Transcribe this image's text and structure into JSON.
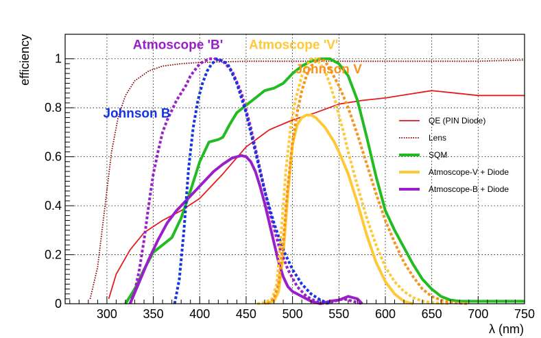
{
  "chart_data": {
    "type": "line",
    "title": "",
    "xlabel": "λ (nm)",
    "ylabel": "efficiency",
    "xlim": [
      255,
      750
    ],
    "ylim": [
      0,
      1.1
    ],
    "grid": true,
    "x_ticks": [
      300,
      350,
      400,
      450,
      500,
      550,
      600,
      650,
      700,
      750
    ],
    "y_ticks": [
      0,
      0.2,
      0.4,
      0.6,
      0.8,
      1
    ],
    "x_tick_labels": [
      "300",
      "350",
      "400",
      "450",
      "500",
      "550",
      "600",
      "650",
      "700",
      "750"
    ],
    "y_tick_labels": [
      "0",
      "0.2",
      "0.4",
      "0.6",
      "0.8",
      "1"
    ],
    "legend_position": "right",
    "series": [
      {
        "name": "QE (PIN Diode)",
        "in_legend": true,
        "color": "#e41a1c",
        "style": "solid",
        "weight": "thin",
        "x": [
          302,
          310,
          325,
          340,
          360,
          380,
          400,
          425,
          450,
          475,
          500,
          525,
          550,
          575,
          600,
          625,
          650,
          675,
          700,
          725,
          750
        ],
        "y": [
          0.02,
          0.12,
          0.22,
          0.29,
          0.34,
          0.38,
          0.43,
          0.53,
          0.64,
          0.71,
          0.75,
          0.78,
          0.815,
          0.83,
          0.84,
          0.855,
          0.87,
          0.86,
          0.85,
          0.85,
          0.85
        ]
      },
      {
        "name": "Lens",
        "in_legend": true,
        "color": "#8b0000",
        "style": "dotted",
        "weight": "thin",
        "x": [
          282,
          290,
          298,
          305,
          312,
          320,
          330,
          345,
          360,
          380,
          400,
          450,
          500,
          550,
          600,
          650,
          700,
          750
        ],
        "y": [
          0.02,
          0.15,
          0.4,
          0.62,
          0.76,
          0.85,
          0.91,
          0.95,
          0.97,
          0.98,
          0.985,
          0.99,
          0.99,
          0.99,
          0.99,
          0.99,
          0.99,
          0.995
        ]
      },
      {
        "name": "SQM",
        "in_legend": true,
        "color": "#22bb22",
        "style": "solid",
        "weight": "thick",
        "x": [
          320,
          330,
          340,
          350,
          360,
          370,
          380,
          390,
          400,
          410,
          420,
          425,
          432,
          440,
          450,
          460,
          470,
          480,
          490,
          500,
          510,
          520,
          530,
          540,
          550,
          560,
          570,
          580,
          590,
          600,
          610,
          620,
          630,
          640,
          650,
          660,
          670,
          680,
          690,
          700,
          710,
          720,
          730,
          740,
          750
        ],
        "y": [
          0.0,
          0.06,
          0.14,
          0.21,
          0.24,
          0.27,
          0.35,
          0.46,
          0.58,
          0.66,
          0.67,
          0.68,
          0.73,
          0.78,
          0.81,
          0.84,
          0.87,
          0.88,
          0.9,
          0.94,
          0.97,
          0.99,
          1.0,
          1.0,
          0.98,
          0.93,
          0.83,
          0.68,
          0.52,
          0.38,
          0.3,
          0.23,
          0.16,
          0.1,
          0.06,
          0.03,
          0.015,
          0.01,
          0.01,
          0.01,
          0.01,
          0.01,
          0.01,
          0.01,
          0.01
        ]
      },
      {
        "name": "Atmoscope-V + Diode",
        "in_legend": true,
        "color": "#ffc837",
        "style": "solid",
        "weight": "thick",
        "x": [
          470,
          480,
          485,
          490,
          495,
          500,
          505,
          510,
          515,
          520,
          525,
          530,
          535,
          540,
          545,
          550,
          560,
          570,
          580,
          590,
          600,
          610,
          620,
          630
        ],
        "y": [
          0.0,
          0.01,
          0.05,
          0.2,
          0.45,
          0.65,
          0.73,
          0.76,
          0.77,
          0.77,
          0.76,
          0.74,
          0.72,
          0.69,
          0.66,
          0.62,
          0.53,
          0.41,
          0.28,
          0.17,
          0.09,
          0.04,
          0.01,
          0.0
        ]
      },
      {
        "name": "Atmoscope-B + Diode",
        "in_legend": true,
        "color": "#9a1fc8",
        "style": "solid",
        "weight": "thick",
        "x": [
          325,
          335,
          345,
          355,
          365,
          375,
          385,
          395,
          405,
          415,
          425,
          435,
          445,
          450,
          455,
          460,
          465,
          470,
          475,
          480,
          485,
          490,
          495,
          500,
          505,
          510,
          520,
          530,
          540,
          550,
          560,
          570,
          575
        ],
        "y": [
          0.0,
          0.09,
          0.18,
          0.26,
          0.33,
          0.38,
          0.42,
          0.46,
          0.5,
          0.54,
          0.57,
          0.595,
          0.605,
          0.6,
          0.58,
          0.54,
          0.48,
          0.41,
          0.33,
          0.25,
          0.17,
          0.11,
          0.07,
          0.05,
          0.04,
          0.03,
          0.01,
          0.0,
          0.01,
          0.015,
          0.03,
          0.02,
          0.0
        ]
      },
      {
        "name": "Atmoscope 'B'",
        "in_legend": false,
        "color": "#9a1fc8",
        "style": "dotted",
        "weight": "thick",
        "x": [
          325,
          330,
          335,
          340,
          345,
          350,
          355,
          360,
          365,
          370,
          375,
          380,
          385,
          390,
          400,
          410,
          418,
          425,
          435,
          445,
          455,
          465,
          475,
          485,
          495,
          505,
          515,
          525,
          535,
          545,
          555,
          565,
          575
        ],
        "y": [
          0.0,
          0.05,
          0.14,
          0.26,
          0.4,
          0.53,
          0.62,
          0.7,
          0.75,
          0.79,
          0.83,
          0.86,
          0.89,
          0.93,
          0.98,
          1.0,
          1.0,
          0.99,
          0.95,
          0.86,
          0.72,
          0.55,
          0.38,
          0.24,
          0.14,
          0.07,
          0.03,
          0.01,
          0.0,
          0.01,
          0.02,
          0.01,
          0.0
        ]
      },
      {
        "name": "Johnson B",
        "in_legend": false,
        "color": "#1535e0",
        "style": "dotted",
        "weight": "thick",
        "x": [
          373,
          378,
          383,
          388,
          393,
          398,
          403,
          408,
          413,
          420,
          430,
          440,
          450,
          460,
          470,
          480,
          490,
          500,
          510,
          520,
          530,
          540
        ],
        "y": [
          0.0,
          0.1,
          0.3,
          0.55,
          0.72,
          0.83,
          0.9,
          0.95,
          0.98,
          1.0,
          0.98,
          0.9,
          0.78,
          0.62,
          0.46,
          0.33,
          0.22,
          0.14,
          0.08,
          0.04,
          0.015,
          0.0
        ]
      },
      {
        "name": "Atmoscope 'V'",
        "in_legend": false,
        "color": "#ffc837",
        "style": "dotted",
        "weight": "thick",
        "x": [
          462,
          470,
          478,
          483,
          488,
          493,
          498,
          503,
          510,
          515,
          520,
          525,
          530,
          535,
          540,
          545,
          550,
          555,
          560,
          570,
          580,
          590,
          600,
          610,
          620,
          630,
          640,
          650,
          660,
          670
        ],
        "y": [
          0.0,
          0.005,
          0.02,
          0.08,
          0.3,
          0.55,
          0.72,
          0.83,
          0.93,
          0.97,
          1.0,
          1.0,
          0.98,
          0.95,
          0.9,
          0.84,
          0.77,
          0.7,
          0.62,
          0.48,
          0.35,
          0.24,
          0.15,
          0.09,
          0.05,
          0.025,
          0.01,
          0.005,
          0.002,
          0.0
        ]
      },
      {
        "name": "Johnson V",
        "in_legend": false,
        "color": "#f7941d",
        "style": "dotted",
        "weight": "thick",
        "x": [
          473,
          480,
          485,
          490,
          495,
          500,
          505,
          510,
          515,
          520,
          525,
          530,
          535,
          540,
          550,
          560,
          570,
          580,
          590,
          600,
          610,
          620,
          630,
          640,
          650,
          660,
          670,
          680,
          690
        ],
        "y": [
          0.0,
          0.02,
          0.08,
          0.25,
          0.48,
          0.66,
          0.78,
          0.87,
          0.93,
          0.97,
          0.99,
          1.0,
          0.99,
          0.96,
          0.89,
          0.8,
          0.69,
          0.57,
          0.45,
          0.34,
          0.25,
          0.17,
          0.11,
          0.06,
          0.03,
          0.015,
          0.005,
          0.002,
          0.0
        ]
      }
    ],
    "annotations": [
      {
        "text": "Atmoscope 'B'",
        "color": "#9a1fc8",
        "x": 328,
        "y": 1.04
      },
      {
        "text": "Johnson B",
        "color": "#1535e0",
        "x": 296,
        "y": 0.76
      },
      {
        "text": "Atmoscope 'V'",
        "color": "#ffc837",
        "x": 453,
        "y": 1.04
      },
      {
        "text": "Johnson V",
        "color": "#f7941d",
        "x": 503,
        "y": 0.94
      }
    ]
  }
}
